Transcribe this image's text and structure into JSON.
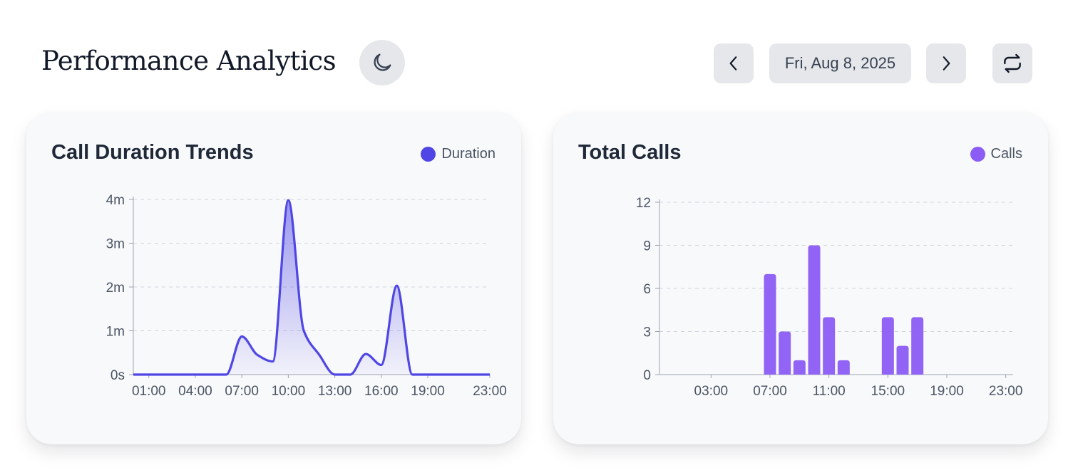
{
  "header": {
    "title": "Performance Analytics",
    "date": "Fri, Aug 8, 2025",
    "icons": {
      "theme": "moon-icon",
      "prev": "chevron-left-icon",
      "next": "chevron-right-icon",
      "refresh": "refresh-icon"
    }
  },
  "colors": {
    "duration": "#4f46e5",
    "calls": "#8b5cf6",
    "grid": "#d1d5db",
    "axis": "#9ca3af",
    "tick": "#4b5563"
  },
  "chart_data": [
    {
      "type": "area",
      "title": "Call Duration Trends",
      "legend": "Duration",
      "legend_position": "top-right",
      "xlabel": "",
      "ylabel": "",
      "xlim": [
        0,
        23
      ],
      "ylim": [
        0,
        4
      ],
      "y_ticks": [
        0,
        1,
        2,
        3,
        4
      ],
      "y_tick_labels": [
        "0s",
        "1m",
        "2m",
        "3m",
        "4m"
      ],
      "x_ticks": [
        1,
        4,
        7,
        10,
        13,
        16,
        19,
        23
      ],
      "x_tick_labels": [
        "01:00",
        "04:00",
        "07:00",
        "10:00",
        "13:00",
        "16:00",
        "19:00",
        "23:00"
      ],
      "grid": true,
      "series": [
        {
          "name": "Duration",
          "x": [
            0,
            1,
            2,
            3,
            4,
            5,
            6,
            7,
            8,
            9,
            10,
            11,
            12,
            13,
            14,
            15,
            16,
            17,
            18,
            19,
            20,
            21,
            22,
            23
          ],
          "values": [
            0,
            0,
            0,
            0,
            0,
            0,
            0,
            0.87,
            0.45,
            0.3,
            3.98,
            1.0,
            0.45,
            0,
            0,
            0.47,
            0.22,
            2.03,
            0,
            0,
            0,
            0,
            0,
            0
          ]
        }
      ]
    },
    {
      "type": "bar",
      "title": "Total Calls",
      "legend": "Calls",
      "legend_position": "top-right",
      "xlabel": "",
      "ylabel": "",
      "ylim": [
        0,
        12
      ],
      "y_ticks": [
        0,
        3,
        6,
        9,
        12
      ],
      "y_tick_labels": [
        "0",
        "3",
        "6",
        "9",
        "12"
      ],
      "x_ticks": [
        3,
        7,
        11,
        15,
        19,
        23
      ],
      "x_tick_labels": [
        "03:00",
        "07:00",
        "11:00",
        "15:00",
        "19:00",
        "23:00"
      ],
      "grid": true,
      "series": [
        {
          "name": "Calls",
          "hours": [
            7,
            8,
            9,
            10,
            11,
            12,
            15,
            16,
            17
          ],
          "values": [
            7,
            3,
            1,
            9,
            4,
            1,
            4,
            2,
            4
          ]
        }
      ]
    }
  ]
}
